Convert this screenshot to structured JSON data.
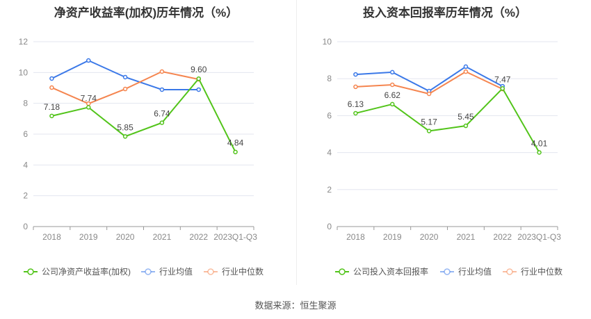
{
  "footer": {
    "source": "数据来源：恒生聚源"
  },
  "chart_data": [
    {
      "type": "line",
      "title": "净资产收益率(加权)历年情况（%）",
      "categories": [
        "2018",
        "2019",
        "2020",
        "2021",
        "2022",
        "2023Q1-Q3"
      ],
      "ylim": [
        0,
        12
      ],
      "yticks": [
        0,
        2,
        4,
        6,
        8,
        10,
        12
      ],
      "grid": true,
      "legend_position": "bottom",
      "series": [
        {
          "name": "公司净资产收益率(加权)",
          "color": "#52c41a",
          "values": [
            7.18,
            7.74,
            5.85,
            6.74,
            9.6,
            4.84
          ],
          "labels": [
            "7.18",
            "7.74",
            "5.85",
            "6.74",
            "9.60",
            "4.84"
          ]
        },
        {
          "name": "行业均值",
          "color": "#3a78e8",
          "values": [
            9.61,
            10.78,
            9.7,
            8.89,
            8.89,
            null
          ]
        },
        {
          "name": "行业中位数",
          "color": "#f5854f",
          "values": [
            9.02,
            7.98,
            8.93,
            10.06,
            9.56,
            null
          ]
        }
      ]
    },
    {
      "type": "line",
      "title": "投入资本回报率历年情况（%）",
      "categories": [
        "2018",
        "2019",
        "2020",
        "2021",
        "2022",
        "2023Q1-Q3"
      ],
      "ylim": [
        0,
        10
      ],
      "yticks": [
        0,
        2,
        4,
        6,
        8,
        10
      ],
      "grid": true,
      "legend_position": "bottom",
      "series": [
        {
          "name": "公司投入资本回报率",
          "color": "#52c41a",
          "values": [
            6.13,
            6.62,
            5.17,
            5.45,
            7.47,
            4.01
          ],
          "labels": [
            "6.13",
            "6.62",
            "5.17",
            "5.45",
            "7.47",
            "4.01"
          ]
        },
        {
          "name": "行业均值",
          "color": "#3a78e8",
          "values": [
            8.23,
            8.35,
            7.33,
            8.65,
            7.59,
            null
          ]
        },
        {
          "name": "行业中位数",
          "color": "#f5854f",
          "values": [
            7.56,
            7.67,
            7.18,
            8.38,
            7.44,
            null
          ]
        }
      ]
    }
  ]
}
